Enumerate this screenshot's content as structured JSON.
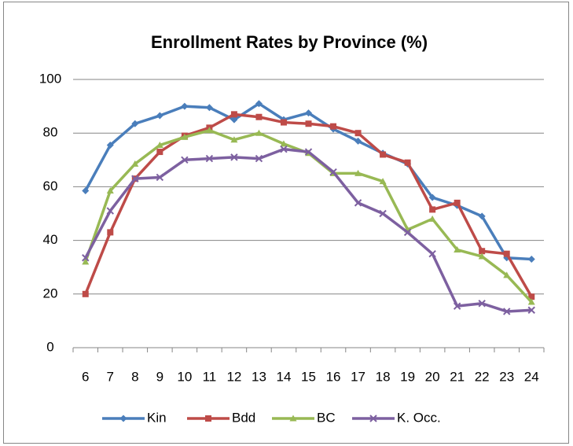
{
  "chart_data": {
    "type": "line",
    "title": "Enrollment Rates by Province (%)",
    "categories": [
      6,
      7,
      8,
      9,
      10,
      11,
      12,
      13,
      14,
      15,
      16,
      17,
      18,
      19,
      20,
      21,
      22,
      23,
      24
    ],
    "series": [
      {
        "name": "Kin",
        "color": "#4a7ebb",
        "marker": "diamond",
        "values": [
          58.5,
          75.5,
          83.5,
          86.5,
          90,
          89.5,
          85,
          91,
          85,
          87.5,
          81.5,
          77,
          72.5,
          68.5,
          56,
          53,
          49,
          33.5,
          33
        ]
      },
      {
        "name": "Bdd",
        "color": "#be4b48",
        "marker": "square",
        "values": [
          20,
          43,
          63,
          73,
          79,
          82,
          87,
          86,
          84,
          83.5,
          82.5,
          80,
          72,
          69,
          51.5,
          54,
          36,
          35,
          19
        ]
      },
      {
        "name": "BC",
        "color": "#98b954",
        "marker": "triangle",
        "values": [
          32,
          58.5,
          68.5,
          75.5,
          78.5,
          81,
          77.5,
          80,
          76,
          72.5,
          65,
          65,
          62,
          44,
          48,
          36.5,
          34,
          27,
          17
        ]
      },
      {
        "name": "K. Occ.",
        "color": "#7d60a0",
        "marker": "x",
        "values": [
          33.5,
          51,
          63,
          63.5,
          70,
          70.5,
          71,
          70.5,
          74,
          73,
          65.5,
          54,
          50,
          43,
          35,
          15.5,
          16.5,
          13.5,
          14
        ]
      }
    ],
    "ylim": [
      0,
      100
    ],
    "yticks": [
      0,
      20,
      40,
      60,
      80,
      100
    ],
    "grid": true,
    "legend": "bottom"
  }
}
